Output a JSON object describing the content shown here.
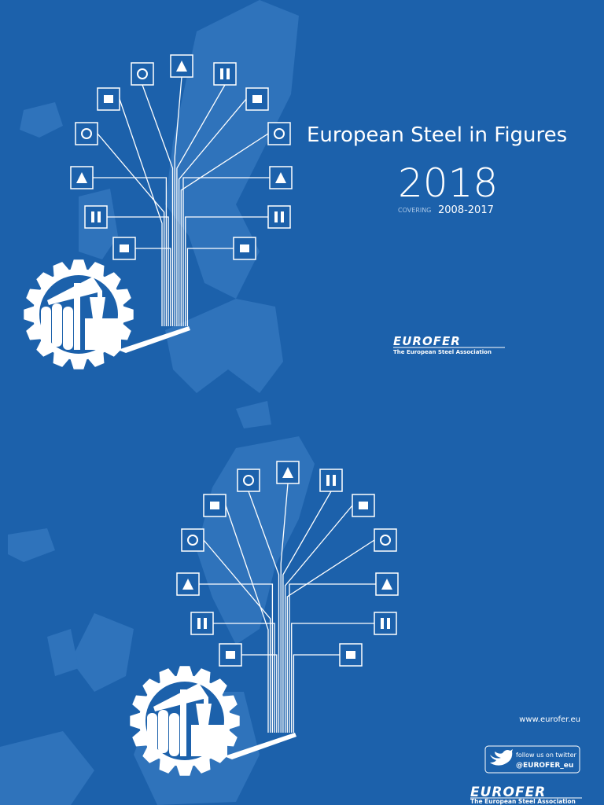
{
  "cover": {
    "title": "European Steel in Figures",
    "year": "2018",
    "covering_label": "COVERING",
    "covering_years": "2008-2017",
    "logo": {
      "name": "EUROFER",
      "tagline": "The European Steel Association"
    }
  },
  "back": {
    "website": "www.eurofer.eu",
    "twitter": {
      "prompt": "follow us on twitter",
      "handle": "@EUROFER_eu"
    },
    "logo": {
      "name": "EUROFER",
      "tagline": "The European Steel Association"
    }
  }
}
